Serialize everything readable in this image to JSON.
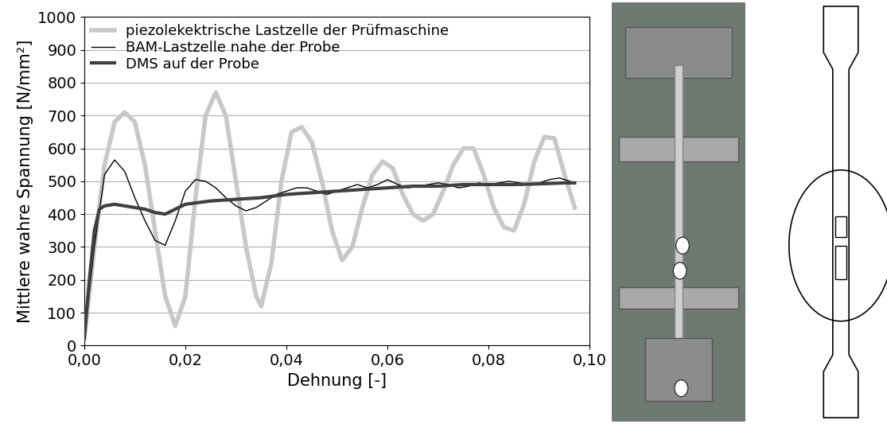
{
  "chart_data": {
    "type": "line",
    "x_label": "Dehnung [-]",
    "y_label": "Mittlere wahre Spannung [N/mm²]",
    "xlim": [
      0.0,
      0.1
    ],
    "ylim": [
      0,
      1000
    ],
    "xticks": [
      {
        "value": 0.0,
        "label": "0,00"
      },
      {
        "value": 0.02,
        "label": "0,02"
      },
      {
        "value": 0.04,
        "label": "0,04"
      },
      {
        "value": 0.06,
        "label": "0,06"
      },
      {
        "value": 0.08,
        "label": "0,08"
      },
      {
        "value": 0.1,
        "label": "0,10"
      }
    ],
    "yticks": [
      0,
      100,
      200,
      300,
      400,
      500,
      600,
      700,
      800,
      900,
      1000
    ],
    "grid": true,
    "legend": "upper left",
    "series": [
      {
        "name": "piezolekektrische Lastzelle der Prüfmaschine",
        "color": "#c8c8c8",
        "line_style": "solid",
        "x": [
          0.0,
          0.002,
          0.004,
          0.006,
          0.008,
          0.01,
          0.012,
          0.014,
          0.016,
          0.018,
          0.02,
          0.022,
          0.024,
          0.026,
          0.028,
          0.03,
          0.032,
          0.034,
          0.035,
          0.037,
          0.039,
          0.041,
          0.043,
          0.045,
          0.047,
          0.049,
          0.051,
          0.053,
          0.055,
          0.057,
          0.059,
          0.061,
          0.063,
          0.065,
          0.067,
          0.069,
          0.071,
          0.073,
          0.075,
          0.077,
          0.079,
          0.081,
          0.083,
          0.085,
          0.087,
          0.089,
          0.091,
          0.093,
          0.095,
          0.097
        ],
        "values": [
          20,
          300,
          550,
          680,
          710,
          680,
          550,
          350,
          150,
          60,
          150,
          450,
          700,
          770,
          700,
          500,
          300,
          150,
          120,
          250,
          500,
          650,
          665,
          620,
          500,
          350,
          260,
          300,
          420,
          520,
          560,
          540,
          460,
          400,
          380,
          400,
          470,
          550,
          600,
          600,
          520,
          420,
          360,
          350,
          430,
          560,
          635,
          630,
          520,
          420
        ]
      },
      {
        "name": "BAM-Lastzelle nahe der Probe",
        "color": "#000000",
        "line_style": "solid",
        "x": [
          0.0,
          0.002,
          0.004,
          0.006,
          0.008,
          0.01,
          0.012,
          0.014,
          0.016,
          0.018,
          0.02,
          0.022,
          0.024,
          0.026,
          0.028,
          0.03,
          0.032,
          0.034,
          0.036,
          0.038,
          0.04,
          0.042,
          0.044,
          0.046,
          0.048,
          0.05,
          0.052,
          0.054,
          0.056,
          0.058,
          0.06,
          0.062,
          0.064,
          0.066,
          0.068,
          0.07,
          0.072,
          0.074,
          0.076,
          0.078,
          0.08,
          0.082,
          0.084,
          0.086,
          0.088,
          0.09,
          0.092,
          0.094,
          0.096,
          0.097
        ],
        "values": [
          20,
          300,
          520,
          565,
          530,
          450,
          380,
          320,
          305,
          380,
          470,
          505,
          500,
          480,
          450,
          425,
          410,
          420,
          440,
          460,
          470,
          480,
          480,
          470,
          460,
          470,
          480,
          490,
          480,
          490,
          505,
          490,
          480,
          485,
          490,
          495,
          490,
          480,
          485,
          495,
          490,
          495,
          500,
          495,
          490,
          495,
          505,
          510,
          500,
          495
        ]
      },
      {
        "name": "DMS auf der Probe",
        "color": "#404040",
        "line_style": "solid",
        "x": [
          0.0,
          0.001,
          0.002,
          0.003,
          0.004,
          0.006,
          0.008,
          0.01,
          0.012,
          0.014,
          0.016,
          0.018,
          0.02,
          0.025,
          0.03,
          0.035,
          0.04,
          0.045,
          0.05,
          0.055,
          0.06,
          0.065,
          0.07,
          0.075,
          0.08,
          0.085,
          0.09,
          0.095,
          0.097
        ],
        "values": [
          20,
          200,
          350,
          415,
          425,
          430,
          425,
          420,
          415,
          405,
          400,
          415,
          430,
          440,
          445,
          450,
          460,
          465,
          470,
          475,
          480,
          485,
          485,
          490,
          490,
          490,
          492,
          495,
          495
        ]
      }
    ]
  }
}
